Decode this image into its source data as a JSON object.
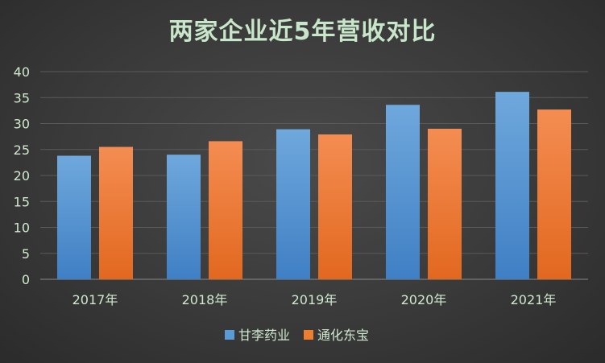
{
  "chart_data": {
    "type": "bar",
    "title": "两家企业近5年营收对比",
    "categories": [
      "2017年",
      "2018年",
      "2019年",
      "2020年",
      "2021年"
    ],
    "series": [
      {
        "name": "甘李药业",
        "values": [
          23.8,
          24.0,
          28.9,
          33.6,
          36.1
        ],
        "color": "#5b9bd5"
      },
      {
        "name": "通化东宝",
        "values": [
          25.5,
          26.6,
          27.9,
          29.0,
          32.7
        ],
        "color": "#ed7d31"
      }
    ],
    "ylim": [
      0,
      40
    ],
    "yticks": [
      0,
      5,
      10,
      15,
      20,
      25,
      30,
      35,
      40
    ],
    "grid": true,
    "legend_position": "bottom"
  }
}
